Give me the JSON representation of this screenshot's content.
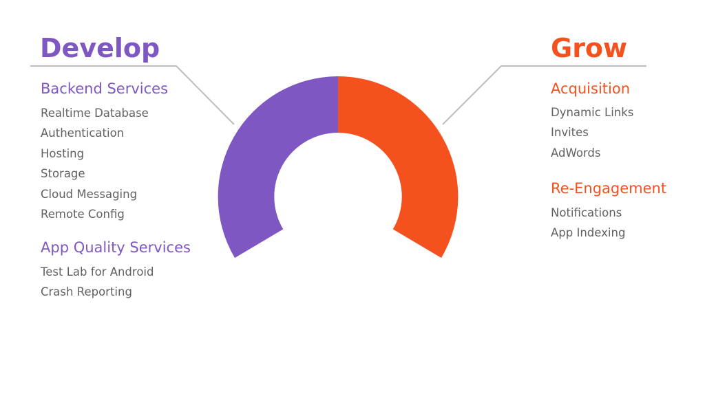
{
  "develop": {
    "title": "Develop",
    "color": "#7E57C2",
    "sections": [
      {
        "heading": "Backend Services",
        "items": [
          "Realtime Database",
          "Authentication",
          "Hosting",
          "Storage",
          "Cloud Messaging",
          "Remote Config"
        ]
      },
      {
        "heading": "App Quality Services",
        "items": [
          "Test Lab for Android",
          "Crash Reporting"
        ]
      }
    ]
  },
  "grow": {
    "title": "Grow",
    "color": "#F4511E",
    "sections": [
      {
        "heading": "Acquisition",
        "items": [
          "Dynamic Links",
          "Invites",
          "AdWords"
        ]
      },
      {
        "heading": "Re-Engagement",
        "items": [
          "Notifications",
          "App Indexing"
        ]
      }
    ]
  },
  "colors": {
    "connector_line": "#BDBDBD",
    "item_text": "#616161"
  }
}
